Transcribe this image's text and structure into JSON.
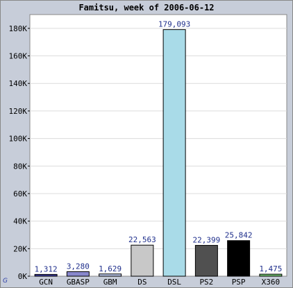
{
  "chart_data": {
    "type": "bar",
    "title": "Famitsu, week of 2006-06-12",
    "xlabel": "",
    "ylabel": "",
    "categories": [
      "GCN",
      "GBASP",
      "GBM",
      "DS",
      "DSL",
      "PS2",
      "PSP",
      "X360"
    ],
    "values": [
      1312,
      3280,
      1629,
      22563,
      179093,
      22399,
      25842,
      1475
    ],
    "value_labels": [
      "1,312",
      "3,280",
      "1,629",
      "22,563",
      "179,093",
      "22,399",
      "25,842",
      "1,475"
    ],
    "bar_colors": [
      "#3a3a9a",
      "#8888cc",
      "#b8c4e8",
      "#c8c8c8",
      "#a9dbe8",
      "#505050",
      "#000000",
      "#6fbf6f"
    ],
    "ylim": [
      0,
      190000
    ],
    "yticks": [
      0,
      20000,
      40000,
      60000,
      80000,
      100000,
      120000,
      140000,
      160000,
      180000
    ],
    "ytick_labels": [
      "0K",
      "20K",
      "40K",
      "60K",
      "80K",
      "100K",
      "120K",
      "140K",
      "160K",
      "180K"
    ],
    "grid": true,
    "legend": "none"
  },
  "colors": {
    "frame_bg": "#c7cdd9",
    "plot_bg": "#ffffff",
    "grid": "#dcdcdc",
    "value_label": "#1f2f8c"
  },
  "logo_text": "G"
}
